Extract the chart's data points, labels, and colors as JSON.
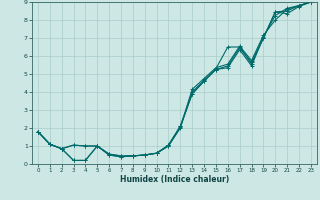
{
  "xlabel": "Humidex (Indice chaleur)",
  "bg_color": "#cde8e4",
  "grid_color": "#aaccca",
  "line_color": "#006b6b",
  "xlim": [
    -0.5,
    23.5
  ],
  "ylim": [
    0,
    9
  ],
  "xticks": [
    0,
    1,
    2,
    3,
    4,
    5,
    6,
    7,
    8,
    9,
    10,
    11,
    12,
    13,
    14,
    15,
    16,
    17,
    18,
    19,
    20,
    21,
    22,
    23
  ],
  "yticks": [
    0,
    1,
    2,
    3,
    4,
    5,
    6,
    7,
    8,
    9
  ],
  "line1_x": [
    0,
    1,
    2,
    3,
    4,
    5,
    6,
    7,
    8,
    9,
    10,
    11,
    12,
    13,
    14,
    15,
    16,
    17,
    18,
    19,
    20,
    21,
    22,
    23
  ],
  "line1_y": [
    1.8,
    1.1,
    0.85,
    1.05,
    1.0,
    1.0,
    0.55,
    0.45,
    0.45,
    0.5,
    0.6,
    1.05,
    2.1,
    3.9,
    4.6,
    5.25,
    5.45,
    6.45,
    5.65,
    7.0,
    8.45,
    8.35,
    8.75,
    9.0
  ],
  "line2_x": [
    0,
    1,
    2,
    3,
    4,
    5,
    6,
    7,
    8,
    9,
    10,
    11,
    12,
    13,
    14,
    15,
    16,
    17,
    18,
    19,
    20,
    21,
    22,
    23
  ],
  "line2_y": [
    1.8,
    1.1,
    0.85,
    0.2,
    0.2,
    1.0,
    0.5,
    0.4,
    0.45,
    0.5,
    0.6,
    1.05,
    2.1,
    3.9,
    4.6,
    5.3,
    6.5,
    6.5,
    5.55,
    7.0,
    8.45,
    8.5,
    8.8,
    9.0
  ],
  "line3_x": [
    0,
    1,
    2,
    3,
    4,
    5,
    6,
    7,
    8,
    9,
    10,
    11,
    12,
    13,
    14,
    15,
    16,
    17,
    18,
    19,
    20,
    21,
    22,
    23
  ],
  "line3_y": [
    1.8,
    1.1,
    0.85,
    0.2,
    0.2,
    1.0,
    0.5,
    0.4,
    0.45,
    0.5,
    0.6,
    1.0,
    2.05,
    4.15,
    4.75,
    5.35,
    5.55,
    6.55,
    5.75,
    7.15,
    8.0,
    8.6,
    8.8,
    9.0
  ],
  "line4_x": [
    0,
    1,
    2,
    3,
    4,
    5,
    6,
    7,
    8,
    9,
    10,
    11,
    12,
    13,
    14,
    15,
    16,
    17,
    18,
    19,
    20,
    21,
    22,
    23
  ],
  "line4_y": [
    1.8,
    1.1,
    0.85,
    1.05,
    1.0,
    1.0,
    0.55,
    0.45,
    0.45,
    0.5,
    0.6,
    1.0,
    2.0,
    4.0,
    4.65,
    5.25,
    5.35,
    6.35,
    5.45,
    7.05,
    8.25,
    8.65,
    8.8,
    9.0
  ]
}
